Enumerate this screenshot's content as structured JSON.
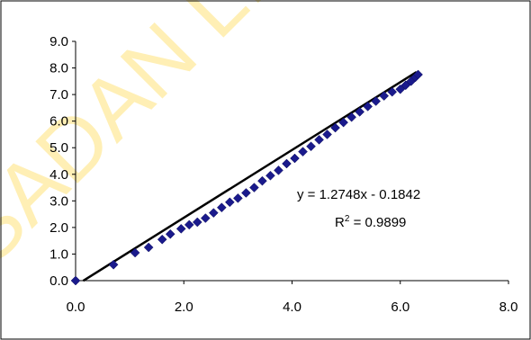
{
  "watermark": "SADAN LIB",
  "chart_data": {
    "type": "scatter",
    "xlim": [
      0,
      8
    ],
    "ylim": [
      0,
      9
    ],
    "xticks": [
      "0.0",
      "2.0",
      "4.0",
      "6.0",
      "8.0"
    ],
    "yticks": [
      "0.0",
      "1.0",
      "2.0",
      "3.0",
      "4.0",
      "5.0",
      "6.0",
      "7.0",
      "8.0",
      "9.0"
    ],
    "grid": false,
    "legend": "none",
    "marker_color": "#1a1a8c",
    "trendline_color": "#000000",
    "trendline": {
      "slope": 1.2748,
      "intercept": -0.1842,
      "x_range": [
        0.14,
        6.3
      ]
    },
    "equation_label": "y = 1.2748x - 0.1842",
    "r2_label_prefix": "R",
    "r2_label_sup": "2",
    "r2_label_value": " = 0.9899",
    "points": [
      [
        0.0,
        0.0
      ],
      [
        0.7,
        0.6
      ],
      [
        1.1,
        1.05
      ],
      [
        1.35,
        1.25
      ],
      [
        1.6,
        1.55
      ],
      [
        1.75,
        1.75
      ],
      [
        1.95,
        1.95
      ],
      [
        2.1,
        2.1
      ],
      [
        2.25,
        2.2
      ],
      [
        2.4,
        2.35
      ],
      [
        2.55,
        2.55
      ],
      [
        2.7,
        2.75
      ],
      [
        2.85,
        2.95
      ],
      [
        3.0,
        3.1
      ],
      [
        3.15,
        3.3
      ],
      [
        3.3,
        3.5
      ],
      [
        3.45,
        3.75
      ],
      [
        3.6,
        3.95
      ],
      [
        3.75,
        4.15
      ],
      [
        3.9,
        4.4
      ],
      [
        4.05,
        4.6
      ],
      [
        4.2,
        4.85
      ],
      [
        4.35,
        5.05
      ],
      [
        4.5,
        5.3
      ],
      [
        4.65,
        5.5
      ],
      [
        4.8,
        5.75
      ],
      [
        4.95,
        5.95
      ],
      [
        5.1,
        6.15
      ],
      [
        5.25,
        6.35
      ],
      [
        5.4,
        6.55
      ],
      [
        5.55,
        6.75
      ],
      [
        5.7,
        6.95
      ],
      [
        5.85,
        7.1
      ],
      [
        6.0,
        7.2
      ],
      [
        6.1,
        7.35
      ],
      [
        6.2,
        7.5
      ],
      [
        6.28,
        7.65
      ],
      [
        6.33,
        7.75
      ]
    ]
  }
}
